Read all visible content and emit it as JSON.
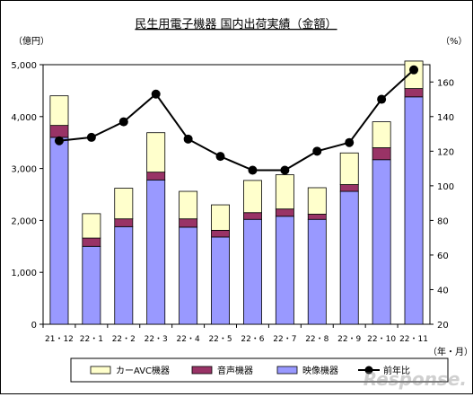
{
  "chart_data": {
    "type": "bar",
    "title": "民生用電子機器 国内出荷実績（金額）",
    "y_left_unit": "（億円）",
    "y_right_unit": "（%）",
    "x_unit": "（年・月）",
    "y_left_lim": [
      0,
      5000
    ],
    "y_left_ticks": [
      "0",
      "1,000",
      "2,000",
      "3,000",
      "4,000",
      "5,000"
    ],
    "y_right_lim": [
      20,
      170
    ],
    "y_right_ticks": [
      "20",
      "40",
      "60",
      "80",
      "100",
      "120",
      "140",
      "160"
    ],
    "categories": [
      "21・12",
      "22・1",
      "22・2",
      "22・3",
      "22・4",
      "22・5",
      "22・6",
      "22・7",
      "22・8",
      "22・9",
      "22・10",
      "22・11"
    ],
    "stacked": true,
    "series": [
      {
        "name": "映像機器",
        "type": "bar",
        "color": "#9999ff",
        "values": [
          3600,
          1500,
          1880,
          2780,
          1870,
          1680,
          2020,
          2080,
          2020,
          2560,
          3170,
          4380
        ]
      },
      {
        "name": "音声機器",
        "type": "bar",
        "color": "#993366",
        "values": [
          230,
          160,
          150,
          150,
          160,
          130,
          130,
          140,
          100,
          130,
          230,
          160
        ]
      },
      {
        "name": "カーAVC機器",
        "type": "bar",
        "color": "#ffffcc",
        "values": [
          570,
          470,
          590,
          760,
          530,
          490,
          620,
          660,
          510,
          610,
          500,
          530
        ]
      },
      {
        "name": "前年比",
        "type": "line",
        "axis": "right",
        "color": "#000000",
        "values": [
          126,
          128,
          137,
          153,
          127,
          117,
          109,
          109,
          120,
          125,
          150,
          167
        ]
      }
    ],
    "legend_position": "bottom",
    "grid": false
  },
  "watermark": "Response."
}
